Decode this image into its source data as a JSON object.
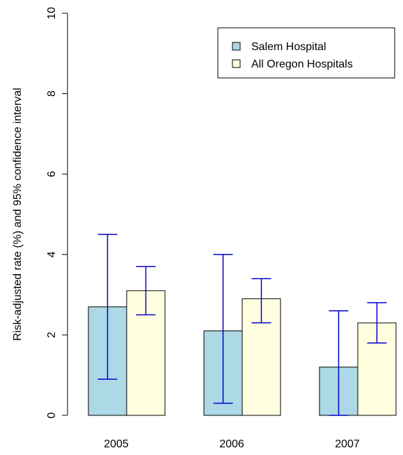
{
  "chart_data": {
    "type": "bar",
    "title": "",
    "xlabel": "",
    "ylabel": "Risk-adjusted rate (%) and 95% confidence interval",
    "categories": [
      "2005",
      "2006",
      "2007"
    ],
    "ylim": [
      0,
      10
    ],
    "yticks": [
      "0",
      "2",
      "4",
      "6",
      "8",
      "10"
    ],
    "grid": false,
    "legend_position": "top-right",
    "series": [
      {
        "name": "Salem Hospital",
        "color": "#add8e6",
        "values": [
          2.7,
          2.1,
          1.2
        ],
        "ci_low": [
          0.9,
          0.3,
          0.0
        ],
        "ci_high": [
          4.5,
          4.0,
          2.6
        ]
      },
      {
        "name": "All Oregon Hospitals",
        "color": "#ffffe0",
        "values": [
          3.1,
          2.9,
          2.3
        ],
        "ci_low": [
          2.5,
          2.3,
          1.8
        ],
        "ci_high": [
          3.7,
          3.4,
          2.8
        ]
      }
    ],
    "error_bar_color": "#0000cd"
  }
}
